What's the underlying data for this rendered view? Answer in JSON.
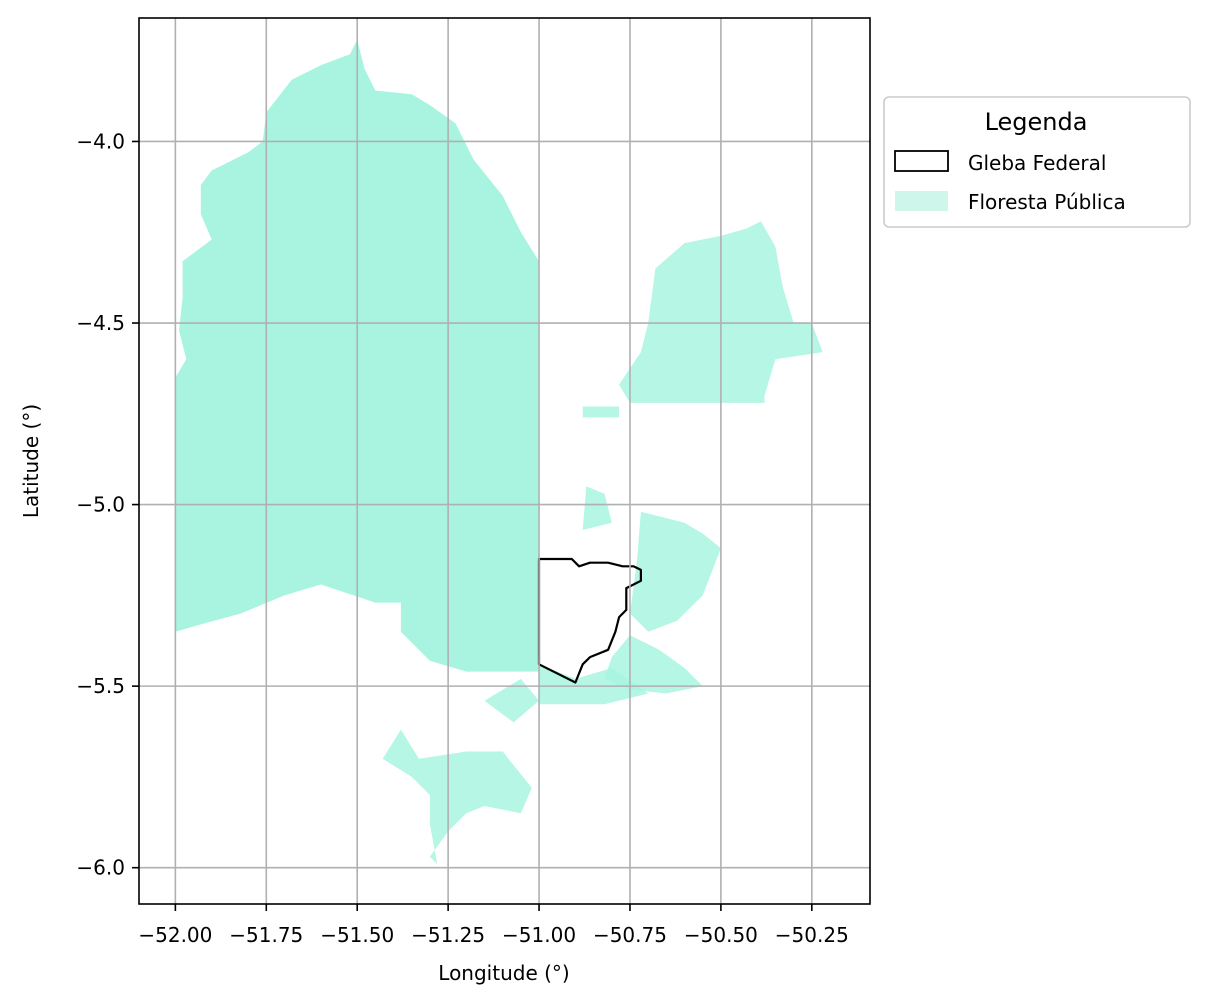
{
  "chart_data": {
    "type": "map",
    "title": "",
    "xlabel": "Longitude (°)",
    "ylabel": "Latitude (°)",
    "xlim": [
      -52.1,
      -50.09
    ],
    "ylim": [
      -6.1,
      -3.66
    ],
    "x_ticks": [
      {
        "value": -52.0,
        "label": "−52.00"
      },
      {
        "value": -51.75,
        "label": "−51.75"
      },
      {
        "value": -51.5,
        "label": "−51.50"
      },
      {
        "value": -51.25,
        "label": "−51.25"
      },
      {
        "value": -51.0,
        "label": "−51.00"
      },
      {
        "value": -50.75,
        "label": "−50.75"
      },
      {
        "value": -50.5,
        "label": "−50.50"
      },
      {
        "value": -50.25,
        "label": "−50.25"
      }
    ],
    "y_ticks": [
      {
        "value": -4.0,
        "label": "−4.0"
      },
      {
        "value": -4.5,
        "label": "−4.5"
      },
      {
        "value": -5.0,
        "label": "−5.0"
      },
      {
        "value": -5.5,
        "label": "−5.5"
      },
      {
        "value": -6.0,
        "label": "−6.0"
      }
    ],
    "grid": true,
    "legend": {
      "title": "Legenda",
      "placement": "outside-upper-right",
      "entries": [
        {
          "label": "Gleba Federal",
          "style": "outline",
          "edge_color": "#000000",
          "fill_color": "#ffffff"
        },
        {
          "label": "Floresta Pública",
          "style": "fill",
          "fill_color": "#cff6ea"
        }
      ]
    },
    "layers": {
      "floresta_publica": {
        "name": "Floresta Pública",
        "color": "#a8f4e0",
        "main_polygon": [
          [
            -51.5,
            -3.72
          ],
          [
            -51.52,
            -3.76
          ],
          [
            -51.6,
            -3.79
          ],
          [
            -51.68,
            -3.83
          ],
          [
            -51.75,
            -3.92
          ],
          [
            -51.76,
            -4.0
          ],
          [
            -51.8,
            -4.03
          ],
          [
            -51.9,
            -4.08
          ],
          [
            -51.93,
            -4.12
          ],
          [
            -51.93,
            -4.2
          ],
          [
            -51.9,
            -4.27
          ],
          [
            -51.98,
            -4.33
          ],
          [
            -51.98,
            -4.43
          ],
          [
            -51.99,
            -4.52
          ],
          [
            -51.97,
            -4.6
          ],
          [
            -52.0,
            -4.65
          ],
          [
            -52.0,
            -5.35
          ],
          [
            -51.93,
            -5.33
          ],
          [
            -51.82,
            -5.3
          ],
          [
            -51.7,
            -5.25
          ],
          [
            -51.6,
            -5.22
          ],
          [
            -51.45,
            -5.27
          ],
          [
            -51.38,
            -5.27
          ],
          [
            -51.38,
            -5.35
          ],
          [
            -51.3,
            -5.43
          ],
          [
            -51.2,
            -5.46
          ],
          [
            -51.0,
            -5.46
          ],
          [
            -51.0,
            -4.33
          ],
          [
            -51.05,
            -4.25
          ],
          [
            -51.1,
            -4.15
          ],
          [
            -51.18,
            -4.05
          ],
          [
            -51.23,
            -3.95
          ],
          [
            -51.3,
            -3.9
          ],
          [
            -51.35,
            -3.87
          ],
          [
            -51.45,
            -3.86
          ],
          [
            -51.48,
            -3.8
          ]
        ],
        "patches": [
          {
            "name": "northeast",
            "polygon": [
              [
                -50.68,
                -4.35
              ],
              [
                -50.6,
                -4.28
              ],
              [
                -50.5,
                -4.26
              ],
              [
                -50.43,
                -4.24
              ],
              [
                -50.39,
                -4.22
              ],
              [
                -50.35,
                -4.29
              ],
              [
                -50.33,
                -4.4
              ],
              [
                -50.3,
                -4.5
              ],
              [
                -50.25,
                -4.5
              ],
              [
                -50.22,
                -4.58
              ],
              [
                -50.35,
                -4.6
              ],
              [
                -50.38,
                -4.7
              ],
              [
                -50.38,
                -4.72
              ],
              [
                -50.6,
                -4.72
              ],
              [
                -50.75,
                -4.72
              ],
              [
                -50.78,
                -4.67
              ],
              [
                -50.72,
                -4.58
              ],
              [
                -50.7,
                -4.5
              ]
            ]
          },
          {
            "name": "east-strip",
            "polygon": [
              [
                -50.88,
                -4.73
              ],
              [
                -50.78,
                -4.73
              ],
              [
                -50.78,
                -4.76
              ],
              [
                -50.88,
                -4.76
              ]
            ]
          },
          {
            "name": "east-middle",
            "polygon": [
              [
                -50.72,
                -5.02
              ],
              [
                -50.6,
                -5.05
              ],
              [
                -50.55,
                -5.08
              ],
              [
                -50.5,
                -5.12
              ],
              [
                -50.55,
                -5.25
              ],
              [
                -50.62,
                -5.32
              ],
              [
                -50.7,
                -5.35
              ],
              [
                -50.75,
                -5.3
              ],
              [
                -50.73,
                -5.15
              ]
            ]
          },
          {
            "name": "east-bottom",
            "polygon": [
              [
                -50.75,
                -5.36
              ],
              [
                -50.67,
                -5.4
              ],
              [
                -50.6,
                -5.45
              ],
              [
                -50.55,
                -5.5
              ],
              [
                -50.65,
                -5.52
              ],
              [
                -50.75,
                -5.51
              ],
              [
                -50.82,
                -5.48
              ],
              [
                -50.8,
                -5.42
              ]
            ]
          },
          {
            "name": "gleba-south",
            "polygon": [
              [
                -51.0,
                -5.44
              ],
              [
                -50.9,
                -5.48
              ],
              [
                -50.8,
                -5.45
              ],
              [
                -50.7,
                -5.52
              ],
              [
                -50.82,
                -5.55
              ],
              [
                -51.0,
                -5.55
              ]
            ]
          },
          {
            "name": "south",
            "polygon": [
              [
                -51.38,
                -5.62
              ],
              [
                -51.33,
                -5.7
              ],
              [
                -51.2,
                -5.68
              ],
              [
                -51.1,
                -5.68
              ],
              [
                -51.02,
                -5.78
              ],
              [
                -51.05,
                -5.85
              ],
              [
                -51.15,
                -5.83
              ],
              [
                -51.2,
                -5.85
              ],
              [
                -51.25,
                -5.9
              ],
              [
                -51.3,
                -5.97
              ],
              [
                -51.28,
                -5.99
              ],
              [
                -51.3,
                -5.88
              ],
              [
                -51.3,
                -5.8
              ],
              [
                -51.35,
                -5.75
              ],
              [
                -51.43,
                -5.7
              ]
            ]
          },
          {
            "name": "small-north",
            "polygon": [
              [
                -50.87,
                -4.95
              ],
              [
                -50.82,
                -4.97
              ],
              [
                -50.8,
                -5.05
              ],
              [
                -50.88,
                -5.07
              ]
            ]
          },
          {
            "name": "lower-left",
            "polygon": [
              [
                -51.05,
                -5.48
              ],
              [
                -51.0,
                -5.54
              ],
              [
                -51.07,
                -5.6
              ],
              [
                -51.15,
                -5.54
              ]
            ]
          }
        ]
      },
      "gleba_federal": {
        "name": "Gleba Federal",
        "polygon": [
          [
            -51.0,
            -5.15
          ],
          [
            -50.91,
            -5.15
          ],
          [
            -50.89,
            -5.17
          ],
          [
            -50.86,
            -5.16
          ],
          [
            -50.81,
            -5.16
          ],
          [
            -50.77,
            -5.17
          ],
          [
            -50.74,
            -5.17
          ],
          [
            -50.72,
            -5.18
          ],
          [
            -50.72,
            -5.21
          ],
          [
            -50.74,
            -5.22
          ],
          [
            -50.76,
            -5.23
          ],
          [
            -50.76,
            -5.29
          ],
          [
            -50.78,
            -5.31
          ],
          [
            -50.79,
            -5.35
          ],
          [
            -50.81,
            -5.4
          ],
          [
            -50.86,
            -5.42
          ],
          [
            -50.88,
            -5.44
          ],
          [
            -50.9,
            -5.49
          ],
          [
            -51.0,
            -5.44
          ]
        ]
      }
    }
  }
}
